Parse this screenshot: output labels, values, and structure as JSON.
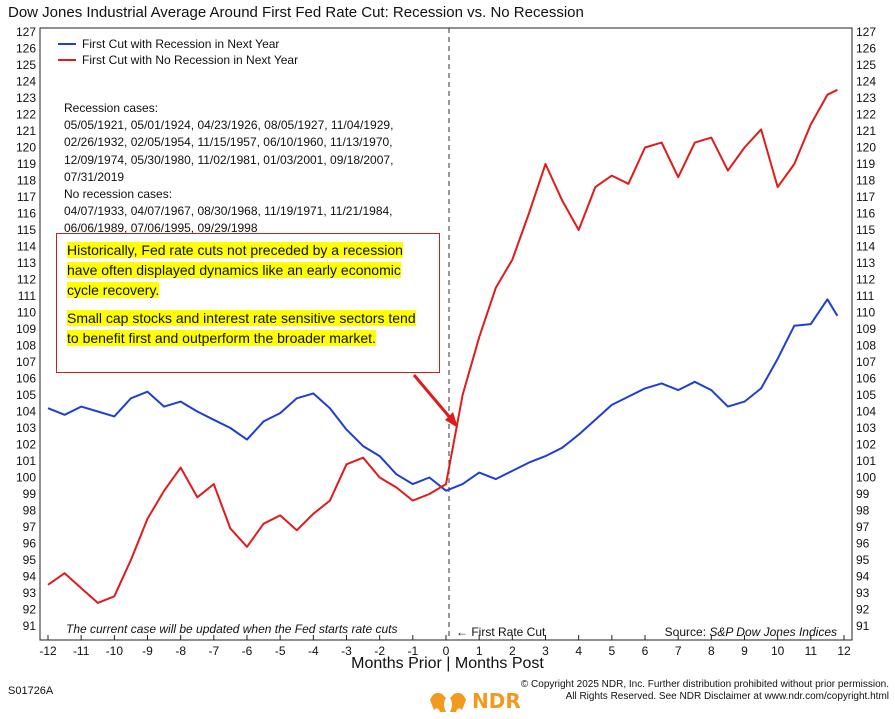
{
  "title": "Dow Jones Industrial Average Around First Fed Rate Cut: Recession vs. No Recession",
  "legend": {
    "recession": {
      "label": "First Cut with Recession in Next Year",
      "color": "#1f3fd0"
    },
    "no_recession": {
      "label": "First Cut with No Recession in Next Year",
      "color": "#e01b1b"
    }
  },
  "cases": {
    "recession_header": "Recession cases:",
    "recession_lines": [
      "05/05/1921, 05/01/1924, 04/23/1926, 08/05/1927, 11/04/1929,",
      "02/26/1932, 02/05/1954, 11/15/1957, 06/10/1960, 11/13/1970,",
      "12/09/1974, 05/30/1980, 11/02/1981, 01/03/2001, 09/18/2007,",
      "07/31/2019"
    ],
    "no_recession_header": "No recession cases:",
    "no_recession_lines": [
      "04/07/1933, 04/07/1967, 08/30/1968, 11/19/1971, 11/21/1984,",
      "06/06/1989, 07/06/1995, 09/29/1998"
    ]
  },
  "callout": {
    "p1": "Historically, Fed rate cuts not preceded by a recession have often displayed dynamics like an early economic cycle recovery.",
    "p2": "Small cap stocks and interest rate sensitive sectors tend to benefit first and outperform the broader market."
  },
  "note": "The current case will be updated when the Fed starts rate cuts",
  "fed_cut_label": "← First Rate Cut",
  "source_prefix": "Source: ",
  "source_name": "S&P Dow Jones Indices",
  "xlabel": "Months Prior | Months Post",
  "code": "S01726A",
  "logo_text": "NDR",
  "copyright_line1": "© Copyright 2025 NDR, Inc. Further distribution prohibited without prior permission.",
  "copyright_line2": "All Rights Reserved. See NDR Disclaimer at www.ndr.com/copyright.html",
  "chart_data": {
    "type": "line",
    "title": "Dow Jones Industrial Average Around First Fed Rate Cut: Recession vs. No Recession",
    "xlabel": "Months Prior | Months Post",
    "ylabel": "",
    "xlim": [
      -12,
      12
    ],
    "ylim": [
      91,
      127
    ],
    "x_ticks": [
      -12,
      -11,
      -10,
      -9,
      -8,
      -7,
      -6,
      -5,
      -4,
      -3,
      -2,
      -1,
      0,
      1,
      2,
      3,
      4,
      5,
      6,
      7,
      8,
      9,
      10,
      11,
      12
    ],
    "y_ticks": [
      91,
      92,
      93,
      94,
      95,
      96,
      97,
      98,
      99,
      100,
      101,
      102,
      103,
      104,
      105,
      106,
      107,
      108,
      109,
      110,
      111,
      112,
      113,
      114,
      115,
      116,
      117,
      118,
      119,
      120,
      121,
      122,
      123,
      124,
      125,
      126,
      127
    ],
    "grid": false,
    "legend_position": "top-left",
    "series": [
      {
        "name": "First Cut with Recession in Next Year",
        "color": "#1f3fd0",
        "x": [
          -12,
          -11.5,
          -11,
          -10.5,
          -10,
          -9.5,
          -9,
          -8.5,
          -8,
          -7.5,
          -7,
          -6.5,
          -6,
          -5.5,
          -5,
          -4.5,
          -4,
          -3.5,
          -3,
          -2.5,
          -2,
          -1.5,
          -1,
          -0.5,
          0,
          0.5,
          1,
          1.5,
          2,
          2.5,
          3,
          3.5,
          4,
          4.5,
          5,
          5.5,
          6,
          6.5,
          7,
          7.5,
          8,
          8.5,
          9,
          9.5,
          10,
          10.5,
          11,
          11.5,
          11.8
        ],
        "y": [
          104.2,
          103.8,
          104.3,
          104.0,
          103.7,
          104.8,
          105.2,
          104.3,
          104.6,
          104.0,
          103.5,
          103.0,
          102.3,
          103.4,
          103.9,
          104.8,
          105.1,
          104.2,
          102.9,
          101.9,
          101.3,
          100.2,
          99.6,
          100.0,
          99.2,
          99.6,
          100.3,
          99.9,
          100.4,
          100.9,
          101.3,
          101.8,
          102.6,
          103.5,
          104.4,
          104.9,
          105.4,
          105.7,
          105.3,
          105.8,
          105.3,
          104.3,
          104.6,
          105.4,
          107.2,
          109.2,
          109.3,
          110.8,
          109.8
        ]
      },
      {
        "name": "First Cut with No Recession in Next Year",
        "color": "#e01b1b",
        "x": [
          -12,
          -11.5,
          -11,
          -10.5,
          -10,
          -9.5,
          -9,
          -8.5,
          -8,
          -7.5,
          -7,
          -6.5,
          -6,
          -5.5,
          -5,
          -4.5,
          -4,
          -3.5,
          -3,
          -2.5,
          -2,
          -1.5,
          -1,
          -0.5,
          0,
          0.5,
          1,
          1.5,
          2,
          2.5,
          3,
          3.5,
          4,
          4.5,
          5,
          5.5,
          6,
          6.5,
          7,
          7.5,
          8,
          8.5,
          9,
          9.5,
          10,
          10.5,
          11,
          11.5,
          11.8
        ],
        "y": [
          93.5,
          94.2,
          93.3,
          92.4,
          92.8,
          95.0,
          97.5,
          99.2,
          100.6,
          98.8,
          99.6,
          96.9,
          95.8,
          97.2,
          97.7,
          96.8,
          97.8,
          98.6,
          100.8,
          101.2,
          100.0,
          99.4,
          98.6,
          99.0,
          99.6,
          105.0,
          108.5,
          111.5,
          113.2,
          116.0,
          119.0,
          116.8,
          115.0,
          117.6,
          118.3,
          117.8,
          120.0,
          120.3,
          118.2,
          120.3,
          120.6,
          118.6,
          120.0,
          121.1,
          117.6,
          119.0,
          121.4,
          123.2,
          123.5
        ]
      }
    ],
    "annotations": [
      "First Rate Cut",
      "The current case will be updated when the Fed starts rate cuts",
      "Source: S&P Dow Jones Indices"
    ]
  }
}
